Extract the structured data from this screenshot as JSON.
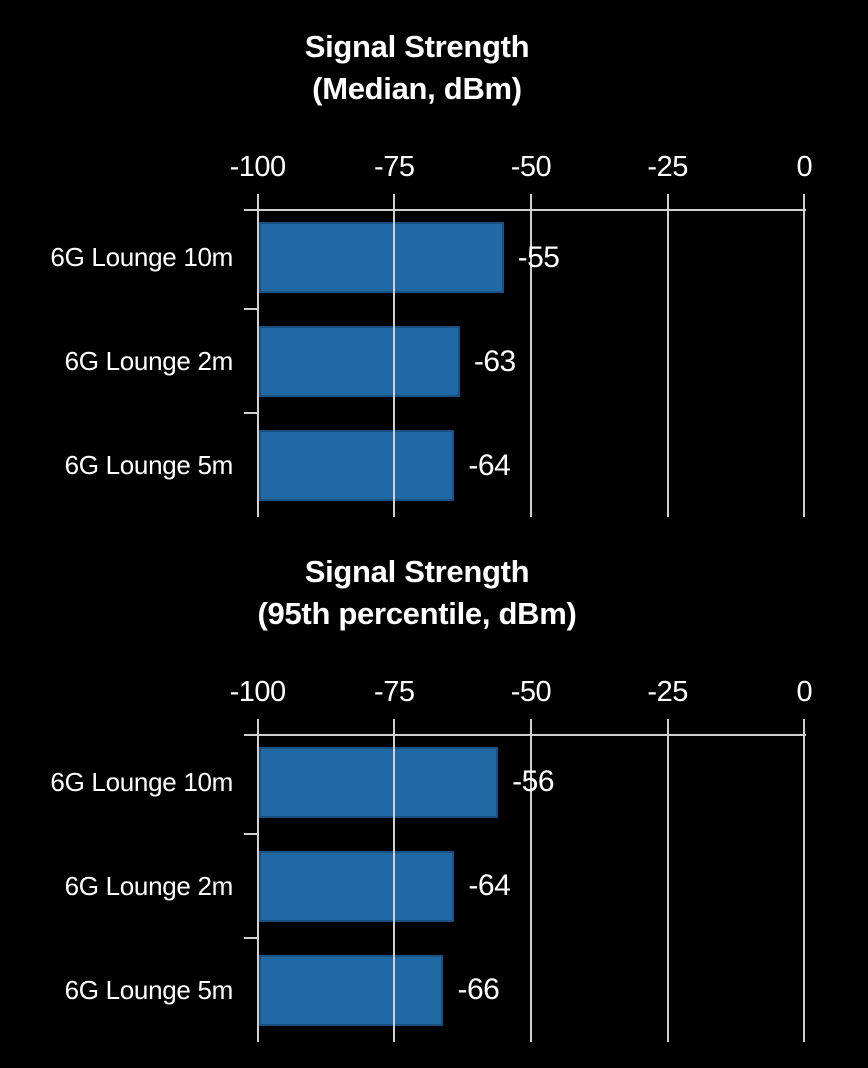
{
  "figure": {
    "background_color": "#000000",
    "bar_color": "#2069A5",
    "bar_border_color": "#1A5080",
    "grid_color": "#CFCFCF",
    "text_color": "#FFFFFF"
  },
  "chart_data": [
    {
      "type": "bar",
      "orientation": "horizontal",
      "title": "Signal Strength",
      "subtitle": "(Median, dBm)",
      "categories": [
        "6G Lounge 10m",
        "6G Lounge 2m",
        "6G Lounge 5m"
      ],
      "values": [
        -55,
        -63,
        -64
      ],
      "value_labels": [
        "-55",
        "-63",
        "-64"
      ],
      "xlim": [
        -100,
        0
      ],
      "xticks": [
        -100,
        -75,
        -50,
        -25,
        0
      ],
      "xtick_labels": [
        "-100",
        "-75",
        "-50",
        "-25",
        "0"
      ],
      "grid": true,
      "axis_position": "top",
      "legend": null
    },
    {
      "type": "bar",
      "orientation": "horizontal",
      "title": "Signal Strength",
      "subtitle": "(95th percentile, dBm)",
      "categories": [
        "6G Lounge 10m",
        "6G Lounge 2m",
        "6G Lounge 5m"
      ],
      "values": [
        -56,
        -64,
        -66
      ],
      "value_labels": [
        "-56",
        "-64",
        "-66"
      ],
      "xlim": [
        -100,
        0
      ],
      "xticks": [
        -100,
        -75,
        -50,
        -25,
        0
      ],
      "xtick_labels": [
        "-100",
        "-75",
        "-50",
        "-25",
        "0"
      ],
      "grid": true,
      "axis_position": "top",
      "legend": null
    }
  ]
}
